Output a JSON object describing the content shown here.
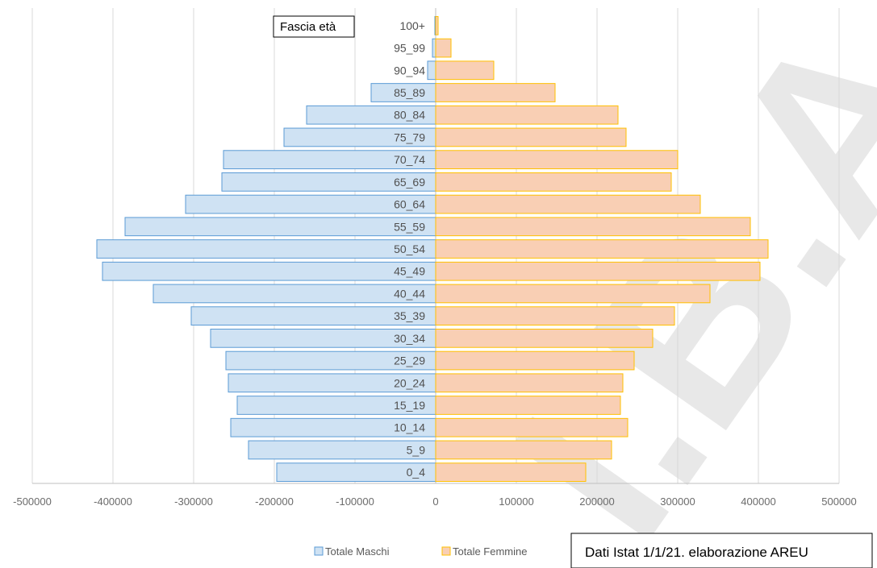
{
  "chart_data": {
    "type": "bar",
    "orientation": "horizontal",
    "category_title": "Fascia età",
    "categories": [
      "100+",
      "95_99",
      "90_94",
      "85_89",
      "80_84",
      "75_79",
      "70_74",
      "65_69",
      "60_64",
      "55_59",
      "50_54",
      "45_49",
      "40_44",
      "35_39",
      "30_34",
      "25_29",
      "20_24",
      "15_19",
      "10_14",
      "5_9",
      "0_4"
    ],
    "series": [
      {
        "name": "Totale Maschi",
        "color": "#5b9bd5",
        "values": [
          -1000,
          -4000,
          -10000,
          -80000,
          -160000,
          -188000,
          -263000,
          -265000,
          -310000,
          -385000,
          -420000,
          -413000,
          -350000,
          -303000,
          -279000,
          -260000,
          -257000,
          -246000,
          -254000,
          -232000,
          -197000
        ]
      },
      {
        "name": "Totale Femmine",
        "color": "#ffc000",
        "values": [
          3000,
          19000,
          72000,
          148000,
          226000,
          236000,
          300000,
          292000,
          328000,
          390000,
          412000,
          402000,
          340000,
          296000,
          269000,
          246000,
          232000,
          229000,
          238000,
          218000,
          186000
        ]
      }
    ],
    "x_ticks": [
      "-500000",
      "-400000",
      "-300000",
      "-200000",
      "-100000",
      "0",
      "100000",
      "200000",
      "300000",
      "400000",
      "500000"
    ],
    "xlim": [
      -500000,
      500000
    ],
    "grid": true,
    "legend": "bottom"
  },
  "note": "Dati Istat 1/1/21. elaborazione AREU",
  "watermark": "I.B.A."
}
